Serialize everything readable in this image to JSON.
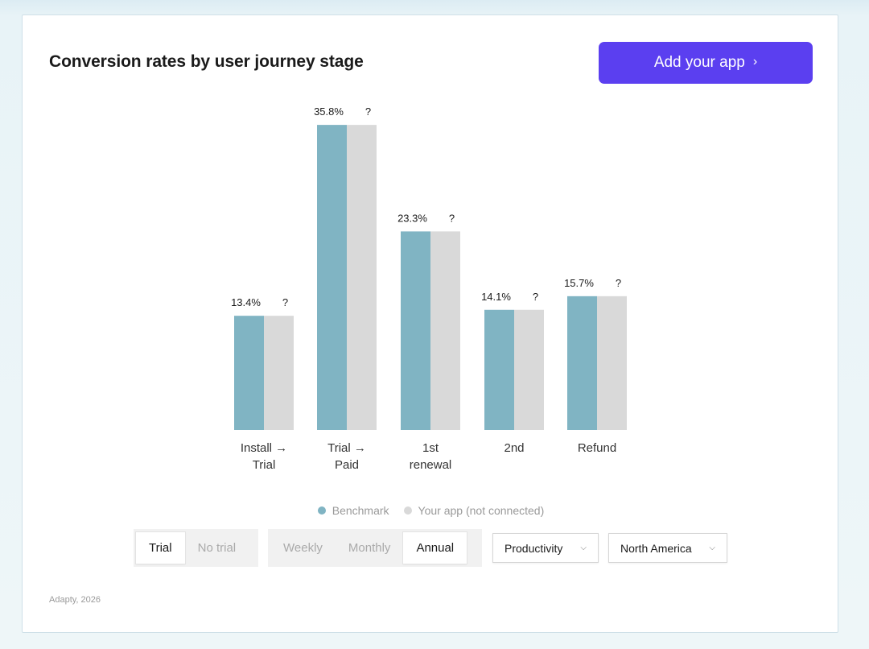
{
  "card": {
    "title": "Conversion rates by user journey stage",
    "cta_label": "Add your app",
    "cta_icon": "chevron-right-icon",
    "footer": "Adapty, 2026"
  },
  "colors": {
    "benchmark": "#80b4c3",
    "your_app": "#d9d9d9",
    "accent": "#5b3ff0"
  },
  "chart_data": {
    "type": "bar",
    "title": "Conversion rates by user journey stage",
    "categories": [
      "Install →\nTrial",
      "Trial →\nPaid",
      "1st\nrenewal",
      "2nd",
      "Refund"
    ],
    "series": [
      {
        "name": "Benchmark",
        "values": [
          13.4,
          35.8,
          23.3,
          14.1,
          15.7
        ],
        "labels": [
          "13.4%",
          "35.8%",
          "23.3%",
          "14.1%",
          "15.7%"
        ]
      },
      {
        "name": "Your app (not connected)",
        "values": [
          13.4,
          35.8,
          23.3,
          14.1,
          15.7
        ],
        "labels": [
          "?",
          "?",
          "?",
          "?",
          "?"
        ]
      }
    ],
    "ylim": [
      0,
      36
    ],
    "grid": false,
    "legend": "bottom-center"
  },
  "filters": {
    "trial": {
      "options": [
        "Trial",
        "No trial"
      ],
      "selected": "Trial"
    },
    "period": {
      "options": [
        "Weekly",
        "Monthly",
        "Annual"
      ],
      "selected": "Annual"
    },
    "category": {
      "value": "Productivity",
      "icon": "chevron-down-icon"
    },
    "region": {
      "value": "North America",
      "icon": "chevron-down-icon"
    }
  }
}
